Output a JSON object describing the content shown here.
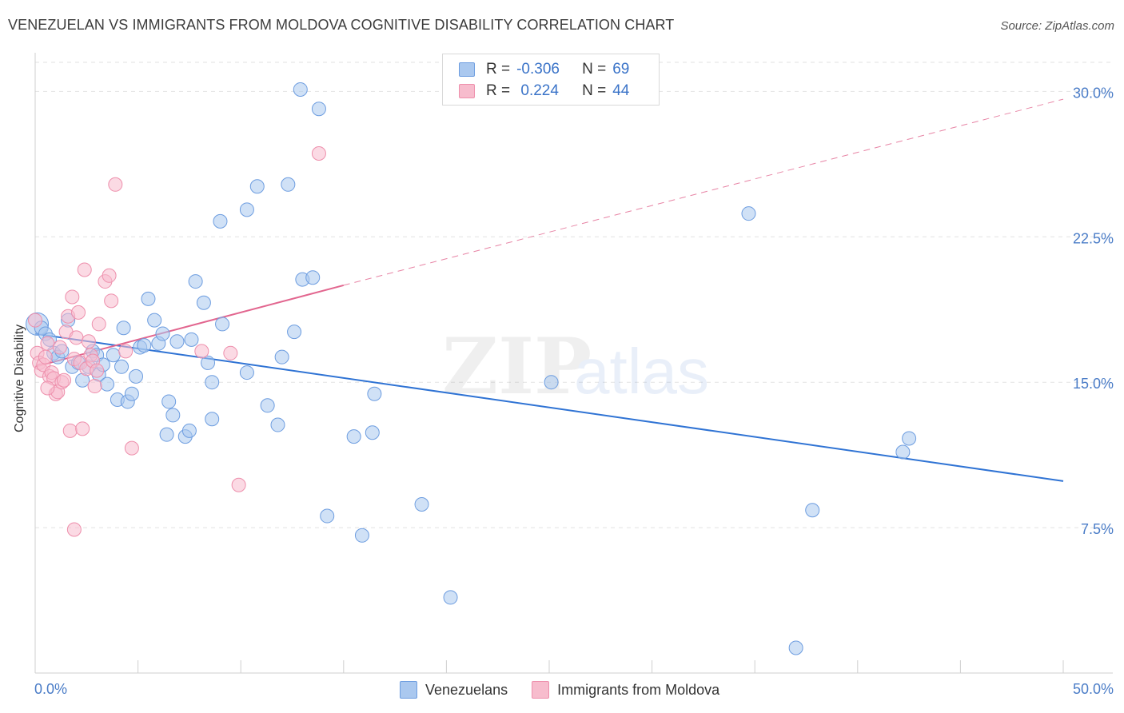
{
  "title": "VENEZUELAN VS IMMIGRANTS FROM MOLDOVA COGNITIVE DISABILITY CORRELATION CHART",
  "source": "Source: ZipAtlas.com",
  "legend_top": {
    "rows": [
      {
        "r_label": "R =",
        "r_value": "-0.306",
        "n_label": "N =",
        "n_value": "69"
      },
      {
        "r_label": "R =",
        "r_value": " 0.224",
        "n_label": "N =",
        "n_value": "44"
      }
    ]
  },
  "colors": {
    "blue_fill": "#aac8ef",
    "blue_stroke": "#6d9de0",
    "blue_line": "#2f73d4",
    "pink_fill": "#f7bccd",
    "pink_stroke": "#ee8fac",
    "pink_line": "#e2668f",
    "tick_text": "#4a7cc7",
    "grid": "#e2e2e2"
  },
  "chart_data": {
    "type": "scatter",
    "title": "VENEZUELAN VS IMMIGRANTS FROM MOLDOVA COGNITIVE DISABILITY CORRELATION CHART",
    "xlabel": "",
    "ylabel": "Cognitive Disability",
    "xlim": [
      0,
      50
    ],
    "ylim": [
      0,
      31.5
    ],
    "x_ticks": [
      "0.0%",
      "50.0%"
    ],
    "y_ticks": [
      "7.5%",
      "15.0%",
      "22.5%",
      "30.0%"
    ],
    "y_tick_values": [
      7.5,
      15.0,
      22.5,
      30.0
    ],
    "grid": true,
    "legend_position": "bottom",
    "series": [
      {
        "name": "Venezuelans",
        "color": "#aac8ef",
        "r": -0.306,
        "n": 69,
        "trend": {
          "x": [
            0,
            50
          ],
          "y": [
            17.5,
            9.9
          ]
        },
        "points": [
          [
            0.1,
            18.0
          ],
          [
            0.3,
            17.8
          ],
          [
            0.5,
            17.5
          ],
          [
            0.7,
            17.2
          ],
          [
            0.9,
            16.5
          ],
          [
            1.1,
            16.3
          ],
          [
            1.3,
            16.6
          ],
          [
            1.6,
            18.2
          ],
          [
            1.8,
            15.8
          ],
          [
            2.1,
            16.0
          ],
          [
            2.3,
            15.1
          ],
          [
            2.6,
            15.8
          ],
          [
            2.8,
            16.6
          ],
          [
            3.0,
            16.4
          ],
          [
            3.1,
            15.4
          ],
          [
            3.3,
            15.9
          ],
          [
            3.5,
            14.9
          ],
          [
            3.8,
            16.4
          ],
          [
            4.0,
            14.1
          ],
          [
            4.2,
            15.8
          ],
          [
            4.3,
            17.8
          ],
          [
            4.5,
            14.0
          ],
          [
            4.7,
            14.4
          ],
          [
            4.9,
            15.3
          ],
          [
            5.1,
            16.8
          ],
          [
            5.3,
            16.9
          ],
          [
            5.5,
            19.3
          ],
          [
            5.8,
            18.2
          ],
          [
            6.0,
            17.0
          ],
          [
            6.2,
            17.5
          ],
          [
            6.4,
            12.3
          ],
          [
            6.5,
            14.0
          ],
          [
            6.7,
            13.3
          ],
          [
            6.9,
            17.1
          ],
          [
            7.3,
            12.2
          ],
          [
            7.5,
            12.5
          ],
          [
            7.6,
            17.2
          ],
          [
            7.8,
            20.2
          ],
          [
            8.2,
            19.1
          ],
          [
            8.4,
            16.0
          ],
          [
            8.6,
            15.0
          ],
          [
            8.6,
            13.1
          ],
          [
            9.0,
            23.3
          ],
          [
            9.1,
            18.0
          ],
          [
            10.3,
            15.5
          ],
          [
            10.3,
            23.9
          ],
          [
            10.8,
            25.1
          ],
          [
            11.3,
            13.8
          ],
          [
            11.8,
            12.8
          ],
          [
            12.0,
            16.3
          ],
          [
            12.3,
            25.2
          ],
          [
            12.6,
            17.6
          ],
          [
            13.0,
            20.3
          ],
          [
            13.5,
            20.4
          ],
          [
            12.9,
            30.1
          ],
          [
            13.8,
            29.1
          ],
          [
            14.2,
            8.1
          ],
          [
            15.5,
            12.2
          ],
          [
            15.9,
            7.1
          ],
          [
            16.4,
            12.4
          ],
          [
            16.5,
            14.4
          ],
          [
            18.8,
            8.7
          ],
          [
            20.2,
            3.9
          ],
          [
            25.1,
            15.0
          ],
          [
            34.7,
            23.7
          ],
          [
            37.0,
            1.3
          ],
          [
            37.8,
            8.4
          ],
          [
            42.2,
            11.4
          ],
          [
            42.5,
            12.1
          ]
        ]
      },
      {
        "name": "Immigrants from Moldova",
        "color": "#f7bccd",
        "r": 0.224,
        "n": 44,
        "trend": {
          "x": [
            0,
            15
          ],
          "y": [
            15.8,
            20.0
          ],
          "dashed_to": {
            "x": 50,
            "y": 29.6
          }
        },
        "points": [
          [
            0.0,
            18.2
          ],
          [
            0.1,
            16.5
          ],
          [
            0.2,
            16.0
          ],
          [
            0.3,
            15.6
          ],
          [
            0.4,
            15.9
          ],
          [
            0.5,
            16.3
          ],
          [
            0.6,
            17.0
          ],
          [
            0.7,
            15.3
          ],
          [
            0.8,
            15.5
          ],
          [
            0.9,
            15.2
          ],
          [
            1.0,
            14.4
          ],
          [
            1.1,
            14.5
          ],
          [
            1.2,
            16.8
          ],
          [
            1.3,
            15.0
          ],
          [
            1.4,
            15.1
          ],
          [
            1.5,
            17.6
          ],
          [
            1.6,
            18.4
          ],
          [
            1.7,
            12.5
          ],
          [
            1.8,
            19.4
          ],
          [
            1.9,
            16.2
          ],
          [
            2.0,
            17.3
          ],
          [
            2.1,
            18.6
          ],
          [
            2.2,
            16.0
          ],
          [
            2.3,
            12.6
          ],
          [
            2.4,
            20.8
          ],
          [
            2.5,
            15.7
          ],
          [
            2.6,
            17.1
          ],
          [
            2.7,
            16.4
          ],
          [
            2.8,
            16.1
          ],
          [
            2.9,
            14.8
          ],
          [
            3.0,
            15.6
          ],
          [
            3.1,
            18.0
          ],
          [
            3.4,
            20.2
          ],
          [
            3.6,
            20.5
          ],
          [
            3.7,
            19.2
          ],
          [
            3.9,
            25.2
          ],
          [
            4.4,
            16.6
          ],
          [
            4.7,
            11.6
          ],
          [
            8.1,
            16.6
          ],
          [
            9.5,
            16.5
          ],
          [
            9.9,
            9.7
          ],
          [
            13.8,
            26.8
          ],
          [
            1.9,
            7.4
          ],
          [
            0.6,
            14.7
          ]
        ]
      }
    ]
  },
  "legend_bottom": {
    "items": [
      "Venezuelans",
      "Immigrants from Moldova"
    ]
  },
  "watermark": {
    "zip": "ZIP",
    "atlas": "atlas"
  }
}
